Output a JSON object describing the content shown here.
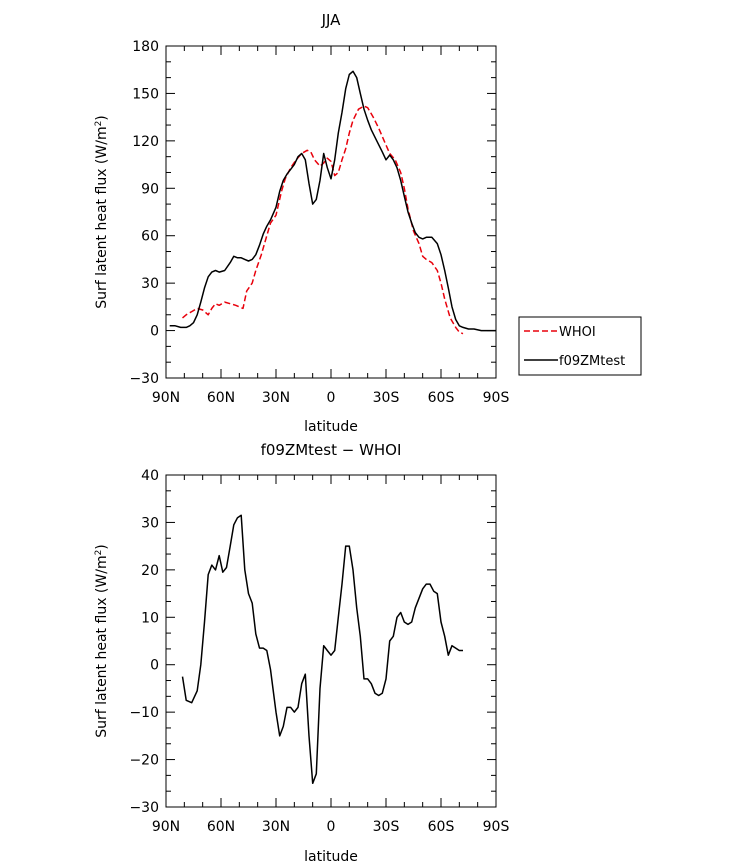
{
  "chart_data": [
    {
      "type": "line",
      "title": "JJA",
      "xlabel": "latitude",
      "ylabel_main": "Surf latent heat flux (W/m",
      "ylabel_sup": "2",
      "ylabel_end": ")",
      "xlim": [
        90,
        -90
      ],
      "ylim": [
        -30,
        180
      ],
      "yticks": [
        -30,
        0,
        30,
        60,
        90,
        120,
        150,
        180
      ],
      "xticks": [
        90,
        60,
        30,
        0,
        -30,
        -60,
        -90
      ],
      "xticklabels": [
        "90N",
        "60N",
        "30N",
        "0",
        "30S",
        "60S",
        "90S"
      ],
      "yticklabels": [
        "−30",
        "0",
        "30",
        "60",
        "90",
        "120",
        "150",
        "180"
      ],
      "legend": [
        {
          "label": "WHOI",
          "color": "#e8000b",
          "dash": "dashed"
        },
        {
          "label": "f09ZMtest",
          "color": "#000000",
          "dash": "solid"
        }
      ],
      "series": [
        {
          "name": "WHOI",
          "color": "#e8000b",
          "x": [
            81,
            79,
            76,
            73,
            70,
            67,
            65,
            63,
            61,
            58,
            55,
            52,
            50,
            48,
            46,
            43,
            41,
            38,
            35,
            33,
            30,
            27,
            25,
            22,
            19,
            16,
            13,
            11,
            9,
            6,
            4,
            2,
            0,
            -2,
            -4,
            -6,
            -8,
            -10,
            -12,
            -15,
            -18,
            -20,
            -23,
            -26,
            -29,
            -32,
            -35,
            -38,
            -40,
            -42,
            -45,
            -48,
            -50,
            -52,
            -55,
            -58,
            -60,
            -62,
            -65,
            -68,
            -70,
            -72
          ],
          "y": [
            8,
            10,
            12,
            14,
            13,
            10,
            14,
            17,
            16,
            18,
            17,
            16,
            15,
            14,
            25,
            30,
            38,
            48,
            60,
            68,
            73,
            88,
            96,
            103,
            108,
            112,
            114,
            113,
            108,
            104,
            106,
            109,
            107,
            98,
            100,
            108,
            115,
            125,
            133,
            140,
            142,
            141,
            135,
            128,
            120,
            112,
            108,
            100,
            90,
            77,
            63,
            55,
            47,
            45,
            43,
            38,
            30,
            20,
            8,
            2,
            -1,
            -2
          ]
        },
        {
          "name": "f09ZMtest",
          "color": "#000000",
          "x": [
            88,
            85,
            82,
            79,
            77,
            75,
            73,
            71,
            69,
            67,
            65,
            63,
            61,
            58,
            55,
            53,
            51,
            49,
            47,
            45,
            43,
            41,
            39,
            37,
            35,
            33,
            30,
            28,
            26,
            24,
            22,
            20,
            18,
            16,
            14,
            12,
            10,
            8,
            6,
            4,
            2,
            0,
            -2,
            -4,
            -6,
            -8,
            -10,
            -12,
            -14,
            -16,
            -18,
            -20,
            -22,
            -25,
            -28,
            -30,
            -32,
            -34,
            -36,
            -38,
            -40,
            -42,
            -44,
            -46,
            -48,
            -50,
            -52,
            -55,
            -58,
            -60,
            -62,
            -64,
            -66,
            -68,
            -70,
            -72,
            -75,
            -78,
            -82,
            -86,
            -90
          ],
          "y": [
            3,
            3,
            2,
            2,
            3,
            5,
            10,
            18,
            27,
            34,
            37,
            38,
            37,
            38,
            43,
            47,
            46,
            46,
            45,
            44,
            45,
            48,
            54,
            61,
            66,
            70,
            78,
            88,
            95,
            99,
            102,
            105,
            110,
            112,
            108,
            93,
            80,
            83,
            95,
            112,
            103,
            96,
            108,
            125,
            138,
            153,
            162,
            164,
            160,
            150,
            140,
            133,
            127,
            120,
            113,
            108,
            111,
            108,
            103,
            95,
            85,
            75,
            68,
            62,
            59,
            58,
            59,
            59,
            55,
            48,
            38,
            27,
            15,
            7,
            3,
            2,
            1,
            1,
            0,
            0,
            0
          ]
        }
      ]
    },
    {
      "type": "line",
      "title": "f09ZMtest − WHOI",
      "xlabel": "latitude",
      "ylabel_main": "Surf latent heat flux (W/m",
      "ylabel_sup": "2",
      "ylabel_end": ")",
      "xlim": [
        90,
        -90
      ],
      "ylim": [
        -30,
        40
      ],
      "yticks": [
        -30,
        -20,
        -10,
        0,
        10,
        20,
        30,
        40
      ],
      "xticks": [
        90,
        60,
        30,
        0,
        -30,
        -60,
        -90
      ],
      "xticklabels": [
        "90N",
        "60N",
        "30N",
        "0",
        "30S",
        "60S",
        "90S"
      ],
      "yticklabels": [
        "−30",
        "−20",
        "−10",
        "0",
        "10",
        "20",
        "30",
        "40"
      ],
      "series": [
        {
          "color": "#000000",
          "x": [
            81,
            79,
            76,
            73,
            71,
            69,
            67,
            65,
            63,
            61,
            59,
            57,
            55,
            53,
            51,
            49,
            47,
            45,
            43,
            41,
            39,
            37,
            35,
            33,
            30,
            28,
            26,
            24,
            22,
            20,
            18,
            16,
            14,
            12,
            10,
            8,
            6,
            4,
            2,
            0,
            -2,
            -4,
            -6,
            -8,
            -10,
            -12,
            -14,
            -16,
            -18,
            -20,
            -22,
            -24,
            -26,
            -28,
            -30,
            -32,
            -34,
            -36,
            -38,
            -40,
            -42,
            -44,
            -46,
            -48,
            -50,
            -52,
            -54,
            -56,
            -58,
            -60,
            -62,
            -64,
            -66,
            -68,
            -70,
            -72
          ],
          "y": [
            -2.5,
            -7.5,
            -8,
            -5.5,
            0,
            9,
            19,
            21,
            20,
            23,
            19.5,
            20.5,
            25,
            29.5,
            31,
            31.5,
            20,
            15,
            13,
            6.5,
            3.5,
            3.5,
            3,
            -1,
            -10,
            -15,
            -13,
            -9,
            -9,
            -10,
            -9,
            -4,
            -2,
            -15,
            -25,
            -23,
            -5,
            4,
            3,
            2,
            3,
            10,
            17,
            25,
            25,
            20,
            12,
            6,
            -3,
            -3,
            -4,
            -6,
            -6.5,
            -6,
            -3,
            5,
            6,
            10,
            11,
            9,
            8.5,
            9,
            12,
            14,
            16,
            17,
            17,
            15.5,
            15,
            9,
            6,
            2,
            4,
            3.5,
            3,
            3
          ]
        }
      ]
    }
  ]
}
